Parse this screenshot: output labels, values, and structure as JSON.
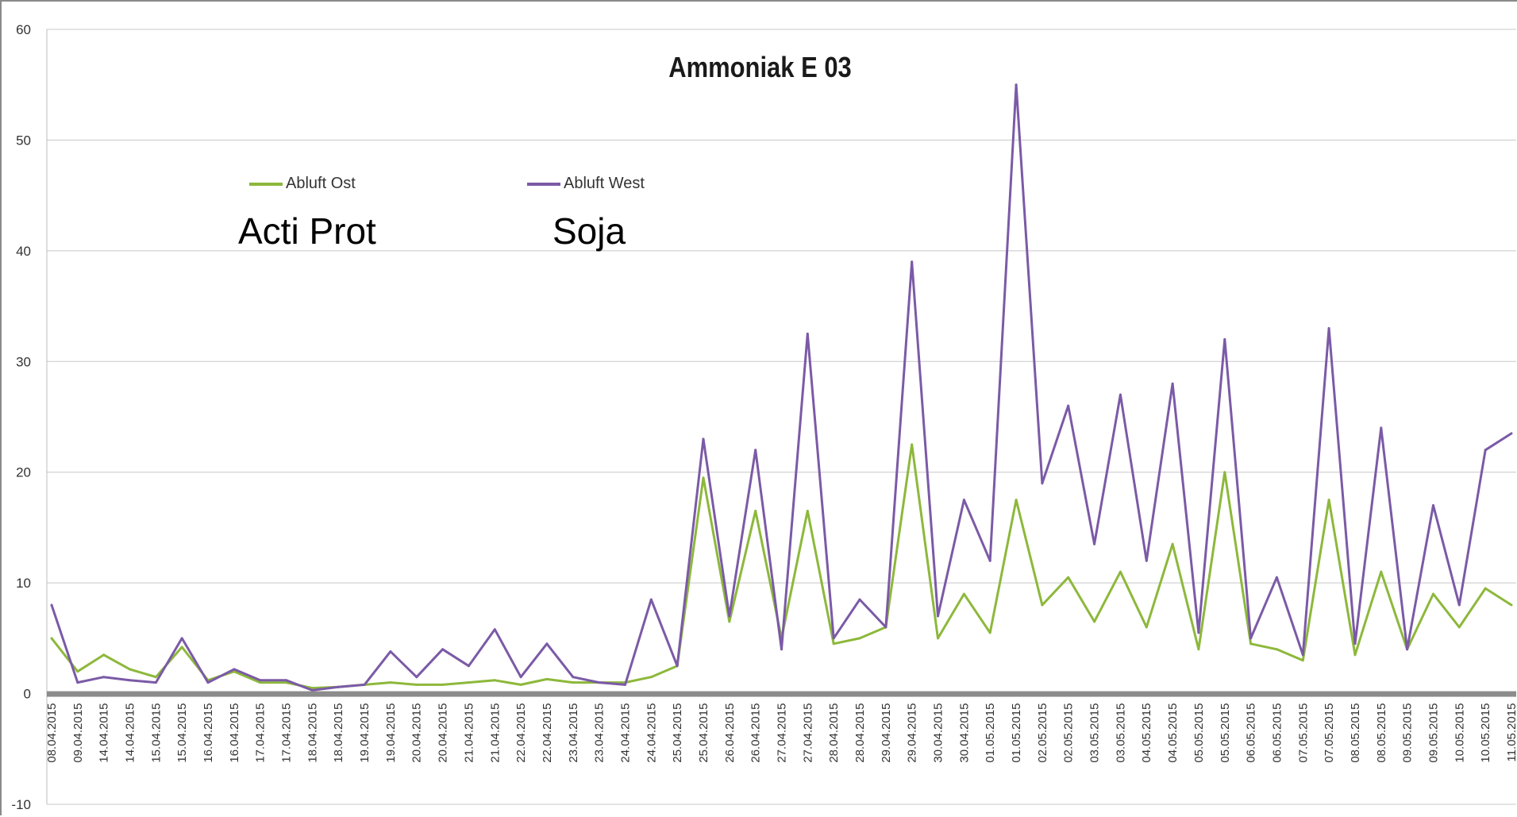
{
  "chart_data": {
    "type": "line",
    "title": "Ammoniak E 03",
    "xlabel": "",
    "ylabel": "",
    "ylim": [
      -10,
      60
    ],
    "yticks": [
      -10,
      0,
      10,
      20,
      30,
      40,
      50,
      60
    ],
    "grid": true,
    "legend_position": "top-left",
    "annotations": [
      "Acti Prot",
      "Soja"
    ],
    "x": [
      "08.04.2015",
      "09.04.2015",
      "14.04.2015",
      "14.04.2015",
      "15.04.2015",
      "15.04.2015",
      "16.04.2015",
      "16.04.2015",
      "17.04.2015",
      "17.04.2015",
      "18.04.2015",
      "18.04.2015",
      "19.04.2015",
      "19.04.2015",
      "20.04.2015",
      "20.04.2015",
      "21.04.2015",
      "21.04.2015",
      "22.04.2015",
      "22.04.2015",
      "23.04.2015",
      "23.04.2015",
      "24.04.2015",
      "24.04.2015",
      "25.04.2015",
      "25.04.2015",
      "26.04.2015",
      "26.04.2015",
      "27.04.2015",
      "27.04.2015",
      "28.04.2015",
      "28.04.2015",
      "29.04.2015",
      "29.04.2015",
      "30.04.2015",
      "30.04.2015",
      "01.05.2015",
      "01.05.2015",
      "02.05.2015",
      "02.05.2015",
      "03.05.2015",
      "03.05.2015",
      "04.05.2015",
      "04.05.2015",
      "05.05.2015",
      "05.05.2015",
      "06.05.2015",
      "06.05.2015",
      "07.05.2015",
      "07.05.2015",
      "08.05.2015",
      "08.05.2015",
      "09.05.2015",
      "09.05.2015",
      "10.05.2015",
      "10.05.2015",
      "11.05.2015"
    ],
    "series": [
      {
        "name": "Abluft Ost",
        "color": "#8db83b",
        "values": [
          5,
          2,
          3.5,
          2.2,
          1.5,
          4.2,
          1.2,
          2.0,
          1.0,
          1.0,
          0.5,
          0.6,
          0.8,
          1.0,
          0.8,
          0.8,
          1.0,
          1.2,
          0.8,
          1.3,
          1.0,
          1.0,
          1.0,
          1.5,
          2.5,
          19.5,
          6.5,
          16.5,
          5.0,
          16.5,
          4.5,
          5.0,
          6.0,
          22.5,
          5.0,
          9.0,
          5.5,
          17.5,
          8.0,
          10.5,
          6.5,
          11.0,
          6.0,
          13.5,
          4.0,
          20.0,
          4.5,
          4.0,
          3.0,
          17.5,
          3.5,
          11.0,
          4.0,
          9.0,
          6.0,
          9.5,
          8.0
        ]
      },
      {
        "name": "Abluft West",
        "color": "#7b5aa6",
        "values": [
          8,
          1,
          1.5,
          1.2,
          1.0,
          5.0,
          1.0,
          2.2,
          1.2,
          1.2,
          0.3,
          0.6,
          0.8,
          3.8,
          1.5,
          4.0,
          2.5,
          5.8,
          1.5,
          4.5,
          1.5,
          1.0,
          0.8,
          8.5,
          2.5,
          23.0,
          7.0,
          22.0,
          4.0,
          32.5,
          5.0,
          8.5,
          6.0,
          39.0,
          7.0,
          17.5,
          12.0,
          55.0,
          19.0,
          26.0,
          13.5,
          27.0,
          12.0,
          28.0,
          5.5,
          32.0,
          5.0,
          10.5,
          3.5,
          33.0,
          4.5,
          24.0,
          4.0,
          17.0,
          8.0,
          22.0,
          23.5
        ]
      }
    ]
  }
}
